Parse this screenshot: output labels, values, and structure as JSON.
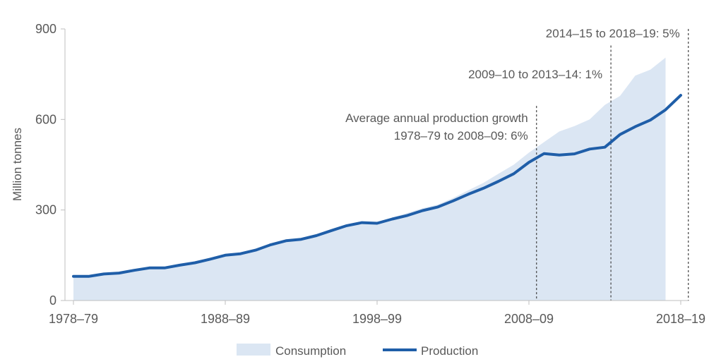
{
  "chart_data": {
    "type": "area",
    "ylabel": "Million tonnes",
    "ylim": [
      0,
      900
    ],
    "yticks": [
      0,
      300,
      600,
      900
    ],
    "xlim": [
      1978,
      2018
    ],
    "xtick_labels": [
      "1978–79",
      "1988–89",
      "1998–99",
      "2008–09",
      "2018–19"
    ],
    "xtick_values": [
      1978,
      1988,
      1998,
      2008,
      2018
    ],
    "grid": false,
    "legend": {
      "placement": "bottom-center",
      "entries": [
        "Consumption",
        "Production"
      ]
    },
    "colors": {
      "consumption": "#dbe6f3",
      "production": "#1f5ea8",
      "text": "#595959",
      "axis": "#bfbfbf",
      "guide": "#404040"
    },
    "series": [
      {
        "name": "Consumption",
        "kind": "area",
        "x": [
          1978,
          1979,
          1980,
          1981,
          1982,
          1983,
          1984,
          1985,
          1986,
          1987,
          1988,
          1989,
          1990,
          1991,
          1992,
          1993,
          1994,
          1995,
          1996,
          1997,
          1998,
          1999,
          2000,
          2001,
          2002,
          2003,
          2004,
          2005,
          2006,
          2007,
          2008,
          2009,
          2010,
          2011,
          2012,
          2013,
          2014,
          2015,
          2016,
          2017
        ],
        "values": [
          80,
          80,
          87,
          90,
          98,
          104,
          108,
          116,
          125,
          138,
          150,
          158,
          170,
          186,
          198,
          204,
          215,
          232,
          250,
          262,
          258,
          275,
          290,
          306,
          318,
          340,
          365,
          390,
          420,
          450,
          490,
          525,
          560,
          578,
          600,
          648,
          678,
          745,
          765,
          805
        ]
      },
      {
        "name": "Production",
        "kind": "line",
        "x": [
          1978,
          1979,
          1980,
          1981,
          1982,
          1983,
          1984,
          1985,
          1986,
          1987,
          1988,
          1989,
          1990,
          1991,
          1992,
          1993,
          1994,
          1995,
          1996,
          1997,
          1998,
          1999,
          2000,
          2001,
          2002,
          2003,
          2004,
          2005,
          2006,
          2007,
          2008,
          2009,
          2010,
          2011,
          2012,
          2013,
          2014,
          2015,
          2016,
          2017,
          2018
        ],
        "values": [
          80,
          80,
          88,
          91,
          100,
          108,
          108,
          117,
          125,
          137,
          150,
          155,
          167,
          185,
          198,
          203,
          215,
          232,
          248,
          258,
          256,
          270,
          282,
          298,
          310,
          330,
          352,
          372,
          395,
          420,
          458,
          487,
          482,
          486,
          502,
          508,
          550,
          576,
          598,
          632,
          680
        ]
      }
    ],
    "annotations": [
      {
        "lines": [
          "Average annual production growth",
          "1978–79 to 2008–09: 6%"
        ],
        "x": 2008.5,
        "y_top": 645
      },
      {
        "lines": [
          "2009–10 to 2013–14: 1%"
        ],
        "x": 2013.4,
        "y_top": 845
      },
      {
        "lines": [
          "2014–15 to 2018–19: 5%"
        ],
        "x": 2018.5,
        "y_top": 900
      }
    ]
  }
}
